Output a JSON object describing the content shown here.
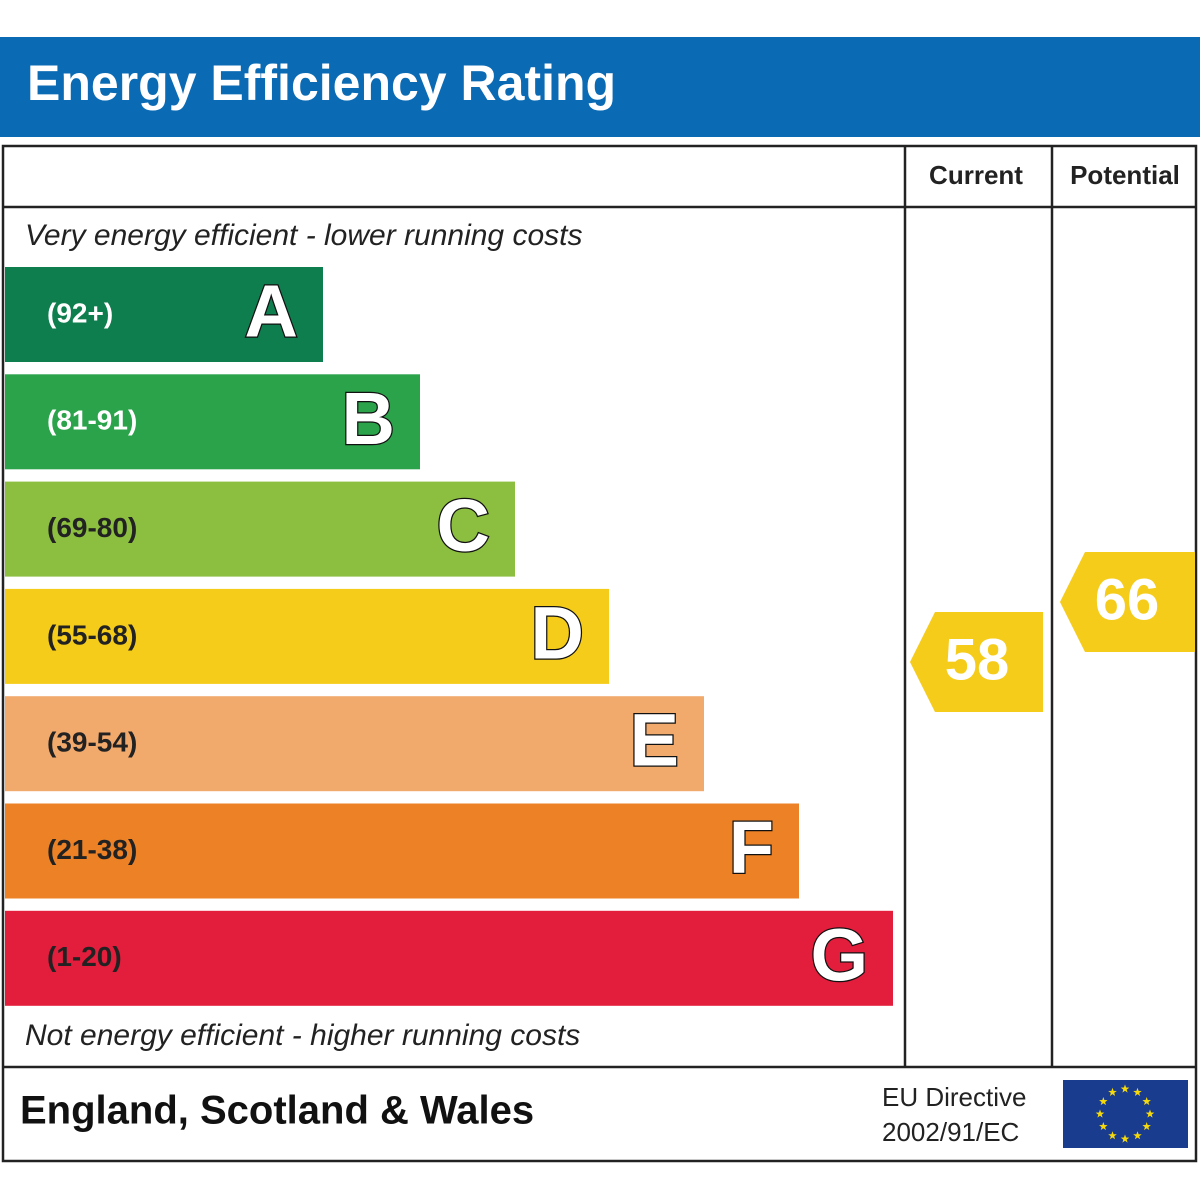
{
  "title": "Energy Efficiency Rating",
  "columns": [
    "Current",
    "Potential"
  ],
  "top_note": "Very energy efficient - lower running costs",
  "bottom_note": "Not energy efficient - higher running costs",
  "bands": [
    {
      "range": "(92+)",
      "letter": "A",
      "color": "#0f7e4f"
    },
    {
      "range": "(81-91)",
      "letter": "B",
      "color": "#2aa34b"
    },
    {
      "range": "(69-80)",
      "letter": "C",
      "color": "#8cbf3f"
    },
    {
      "range": "(55-68)",
      "letter": "D",
      "color": "#f5cc1a"
    },
    {
      "range": "(39-54)",
      "letter": "E",
      "color": "#f2a96c"
    },
    {
      "range": "(21-38)",
      "letter": "F",
      "color": "#ec8125"
    },
    {
      "range": "(1-20)",
      "letter": "G",
      "color": "#e31d3c"
    }
  ],
  "current": 58,
  "potential": 66,
  "rating_color": "#f5cc1a",
  "footer": {
    "region": "England, Scotland & Wales",
    "directive": [
      "EU Directive",
      "2002/91/EC"
    ]
  }
}
